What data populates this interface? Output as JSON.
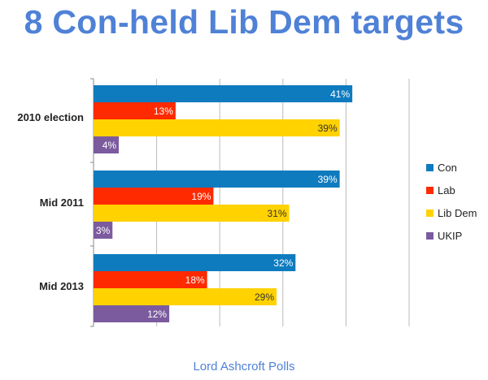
{
  "title": "8 Con-held Lib Dem targets",
  "footer": "Lord Ashcroft Polls",
  "chart_data": {
    "type": "bar",
    "orientation": "horizontal",
    "title": "8 Con-held Lib Dem targets",
    "categories": [
      "2010 election",
      "Mid 2011",
      "Mid 2013"
    ],
    "series": [
      {
        "name": "Con",
        "color": "#0f7bbf",
        "values": [
          41,
          39,
          32
        ],
        "labels": [
          "41%",
          "39%",
          "32%"
        ]
      },
      {
        "name": "Lab",
        "color": "#ff2a00",
        "values": [
          13,
          19,
          18
        ],
        "labels": [
          "13%",
          "19%",
          "18%"
        ]
      },
      {
        "name": "Lib Dem",
        "color": "#ffd200",
        "values": [
          39,
          31,
          29
        ],
        "labels": [
          "39%",
          "31%",
          "29%"
        ]
      },
      {
        "name": "UKIP",
        "color": "#7b5b9e",
        "values": [
          4,
          3,
          12
        ],
        "labels": [
          "4%",
          "3%",
          "12%"
        ]
      }
    ],
    "xlim": [
      0,
      50
    ],
    "grid": true,
    "legend": "right"
  }
}
